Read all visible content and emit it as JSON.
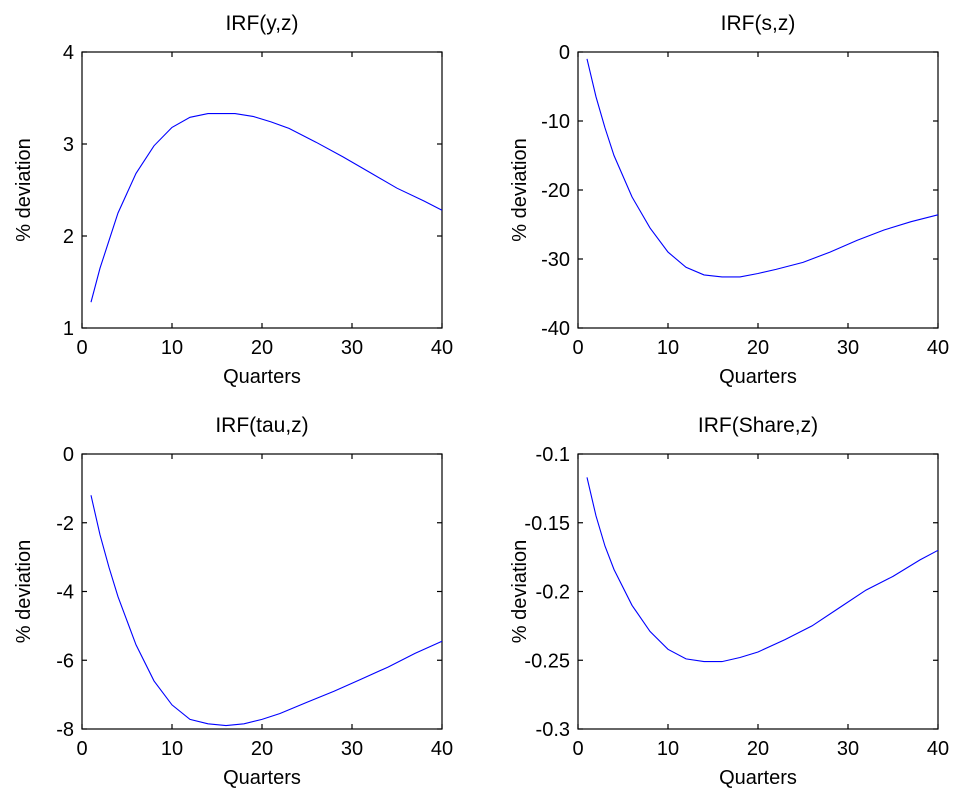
{
  "chart_data": [
    {
      "type": "line",
      "title": "IRF(y,z)",
      "xlabel": "Quarters",
      "ylabel": "% deviation",
      "xlim": [
        0,
        40
      ],
      "ylim": [
        1,
        4
      ],
      "xticks": [
        "0",
        "10",
        "20",
        "30",
        "40"
      ],
      "yticks": [
        "1",
        "2",
        "3",
        "4"
      ],
      "x": [
        1,
        2,
        3,
        4,
        6,
        8,
        10,
        12,
        14,
        16,
        17,
        19,
        21,
        23,
        26,
        29,
        32,
        35,
        38,
        40
      ],
      "y": [
        1.28,
        1.65,
        1.95,
        2.25,
        2.68,
        2.98,
        3.18,
        3.29,
        3.33,
        3.33,
        3.33,
        3.3,
        3.24,
        3.17,
        3.02,
        2.86,
        2.69,
        2.52,
        2.38,
        2.28
      ],
      "line_color": "#0000ff",
      "grid": false
    },
    {
      "type": "line",
      "title": "IRF(s,z)",
      "xlabel": "Quarters",
      "ylabel": "% deviation",
      "xlim": [
        0,
        40
      ],
      "ylim": [
        -40,
        0
      ],
      "xticks": [
        "0",
        "10",
        "20",
        "30",
        "40"
      ],
      "yticks": [
        "0",
        "-10",
        "-20",
        "-30",
        "-40"
      ],
      "x": [
        1,
        2,
        3,
        4,
        6,
        8,
        10,
        12,
        14,
        16,
        18,
        20,
        22,
        25,
        28,
        31,
        34,
        37,
        40
      ],
      "y": [
        -1.0,
        -6.5,
        -11.0,
        -15.0,
        -21.0,
        -25.5,
        -29.0,
        -31.2,
        -32.3,
        -32.6,
        -32.6,
        -32.1,
        -31.5,
        -30.5,
        -29.0,
        -27.3,
        -25.8,
        -24.6,
        -23.6
      ],
      "line_color": "#0000ff",
      "grid": false
    },
    {
      "type": "line",
      "title": "IRF(tau,z)",
      "xlabel": "Quarters",
      "ylabel": "% deviation",
      "xlim": [
        0,
        40
      ],
      "ylim": [
        -8,
        0
      ],
      "xticks": [
        "0",
        "10",
        "20",
        "30",
        "40"
      ],
      "yticks": [
        "0",
        "-2",
        "-4",
        "-6",
        "-8"
      ],
      "x": [
        1,
        2,
        3,
        4,
        6,
        8,
        10,
        12,
        14,
        16,
        18,
        20,
        22,
        25,
        28,
        31,
        34,
        37,
        40
      ],
      "y": [
        -1.2,
        -2.35,
        -3.3,
        -4.15,
        -5.55,
        -6.6,
        -7.3,
        -7.72,
        -7.85,
        -7.9,
        -7.85,
        -7.72,
        -7.55,
        -7.22,
        -6.9,
        -6.55,
        -6.2,
        -5.8,
        -5.45
      ],
      "line_color": "#0000ff",
      "grid": false
    },
    {
      "type": "line",
      "title": "IRF(Share,z)",
      "xlabel": "Quarters",
      "ylabel": "% deviation",
      "xlim": [
        0,
        40
      ],
      "ylim": [
        -0.3,
        -0.1
      ],
      "xticks": [
        "0",
        "10",
        "20",
        "30",
        "40"
      ],
      "yticks": [
        "-0.1",
        "-0.15",
        "-0.2",
        "-0.25",
        "-0.3"
      ],
      "x": [
        1,
        2,
        3,
        4,
        6,
        8,
        10,
        12,
        14,
        16,
        18,
        20,
        23,
        26,
        29,
        32,
        35,
        38,
        40
      ],
      "y": [
        -0.117,
        -0.145,
        -0.167,
        -0.184,
        -0.21,
        -0.229,
        -0.242,
        -0.249,
        -0.251,
        -0.251,
        -0.248,
        -0.244,
        -0.235,
        -0.225,
        -0.212,
        -0.199,
        -0.189,
        -0.177,
        -0.17
      ],
      "line_color": "#0000ff",
      "grid": false
    }
  ]
}
